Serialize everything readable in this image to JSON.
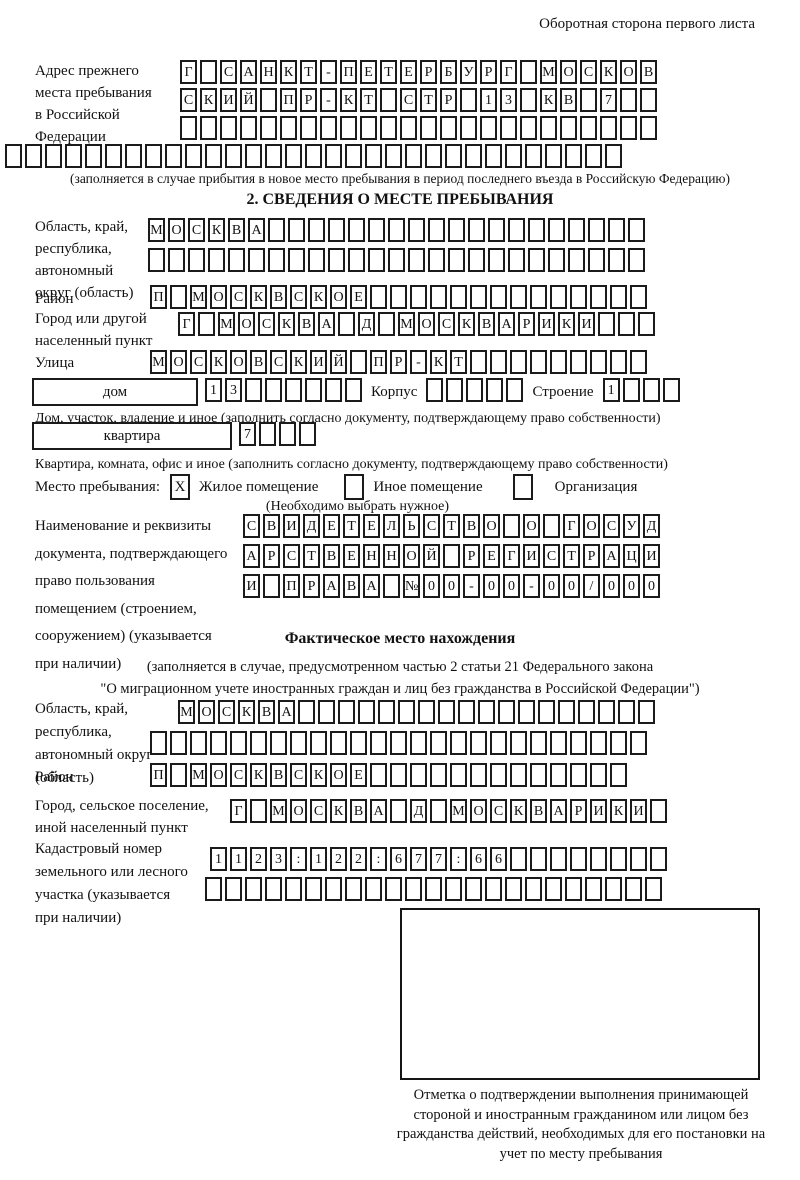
{
  "page": {
    "header_note": "Оборотная сторона первого листа"
  },
  "prev_address": {
    "label": "Адрес прежнего\nместа пребывания\nв Российской\nФедерации",
    "row1": {
      "v": "Г САНКТ-ПЕТЕРБУРГ МОСКОВ",
      "n": 24
    },
    "row2": {
      "v": "СКИЙ ПР-КТ СТР 13 КВ 7",
      "n": 24
    },
    "row3": {
      "v": "",
      "n": 24
    },
    "row4": {
      "v": "",
      "n": 31
    },
    "note": "(заполняется в случае прибытия в новое место пребывания в период последнего въезда в Российскую Федерацию)"
  },
  "section2": {
    "title": "2. СВЕДЕНИЯ О МЕСТЕ ПРЕБЫВАНИЯ",
    "region": {
      "label": "Область, край,\nреспублика,\nавтономный\nокруг (область)",
      "row1": {
        "v": "МОСКВА",
        "n": 25
      },
      "row2": {
        "v": "",
        "n": 25
      }
    },
    "district": {
      "label": "Район",
      "row": {
        "v": "П МОСКВСКОЕ",
        "n": 25
      }
    },
    "city": {
      "label": "Город или другой\nнаселенный пункт",
      "row": {
        "v": "Г МОСКВА Д МОСКВАРИКИ",
        "n": 24
      }
    },
    "street": {
      "label": "Улица",
      "row": {
        "v": "МОСКОВСКИЙ ПР-КТ",
        "n": 25
      }
    },
    "house": {
      "box_label": "дом",
      "cells": {
        "v": "13",
        "n": 8
      },
      "korpus_label": "Корпус",
      "korpus_cells": {
        "v": "",
        "n": 5
      },
      "stroenie_label": "Строение",
      "stroenie_cells": {
        "v": "1",
        "n": 4
      },
      "note": "Дом, участок, владение и иное (заполнить согласно документу, подтверждающему право собственности)"
    },
    "apartment": {
      "box_label": "квартира",
      "cells": {
        "v": "7",
        "n": 4
      },
      "note": "Квартира, комната, офис и иное (заполнить согласно документу, подтверждающему право собственности)"
    },
    "stay_type": {
      "label": "Место пребывания:",
      "options": [
        {
          "label": "Жилое помещение",
          "mark": "X"
        },
        {
          "label": "Иное помещение",
          "mark": ""
        },
        {
          "label": "Организация",
          "mark": ""
        }
      ],
      "note": "(Необходимо выбрать нужное)"
    },
    "doc": {
      "label": "Наименование и реквизиты\nдокумента, подтверждающего\nправо пользования\nпомещением (строением,\nсооружением) (указывается\nпри наличии)",
      "row1": {
        "v": "СВИДЕТЕЛЬСТВО О ГОСУД",
        "n": 21
      },
      "row2": {
        "v": "АРСТВЕННОЙ РЕГИСТРАЦИ",
        "n": 21
      },
      "row3": {
        "v": "И ПРАВА №00-00-00/000",
        "n": 21
      }
    }
  },
  "actual_location": {
    "title": "Фактическое место нахождения",
    "note": "(заполняется в случае, предусмотренном частью 2 статьи 21 Федерального закона\n\"О миграционном учете иностранных граждан и лиц без гражданства в Российской Федерации\")",
    "region": {
      "label": "Область, край,\nреспублика,\nавтономный округ\n(область)",
      "row1": {
        "v": "МОСКВА",
        "n": 24
      },
      "row2": {
        "v": "",
        "n": 25
      }
    },
    "district": {
      "label": "Район",
      "row": {
        "v": "П МОСКВСКОЕ",
        "n": 24
      }
    },
    "city": {
      "label": "Город, сельское поселение,\nиной населенный пункт",
      "row": {
        "v": "Г МОСКВА Д МОСКВАРИКИ",
        "n": 22
      }
    },
    "cadastral": {
      "label": "Кадастровый номер\nземельного или лесного\nучастка (указывается\nпри наличии)",
      "row1": {
        "v": "1123:122:677:66",
        "n": 23
      },
      "row2": {
        "v": "",
        "n": 23
      }
    },
    "stamp_note": "Отметка о подтверждении выполнения принимающей стороной и иностранным гражданином или лицом без гражданства действий, необходимых для его постановки на учет по месту пребывания"
  }
}
